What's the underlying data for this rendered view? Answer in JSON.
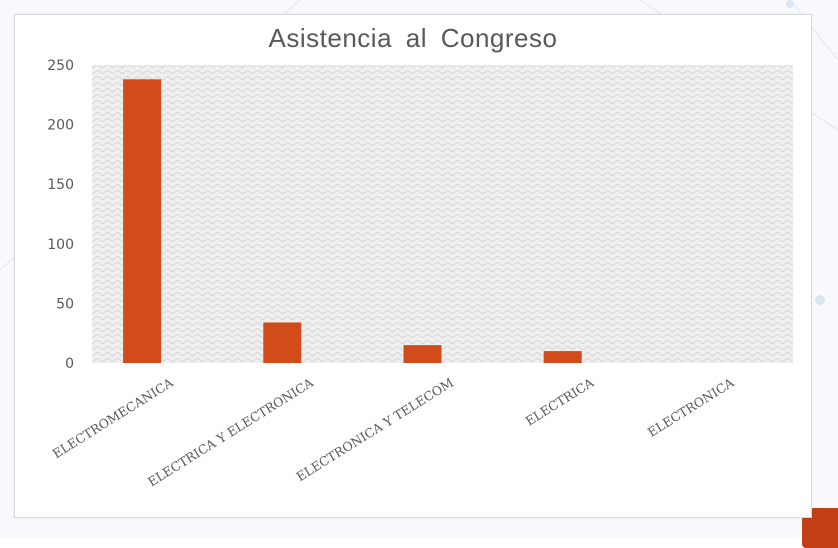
{
  "chart_data": {
    "type": "bar",
    "title": "Asistencia  al  Congreso",
    "categories": [
      "ELECTROMECANICA",
      "ELECTRICA Y ELECTRONICA",
      "ELECTRONICA Y TELECOM",
      "ELECTRICA",
      "ELECTRONICA"
    ],
    "values": [
      238,
      34,
      15,
      10,
      0
    ],
    "ylim": [
      0,
      250
    ],
    "yticks": [
      0,
      50,
      100,
      150,
      200,
      250
    ],
    "grid": false,
    "legend": "none",
    "bar_color": "#d14c1a",
    "plot_background": "#ececec"
  },
  "colors": {
    "bar": "#d14c1a",
    "text": "#595959",
    "decor": "#c43e16"
  }
}
